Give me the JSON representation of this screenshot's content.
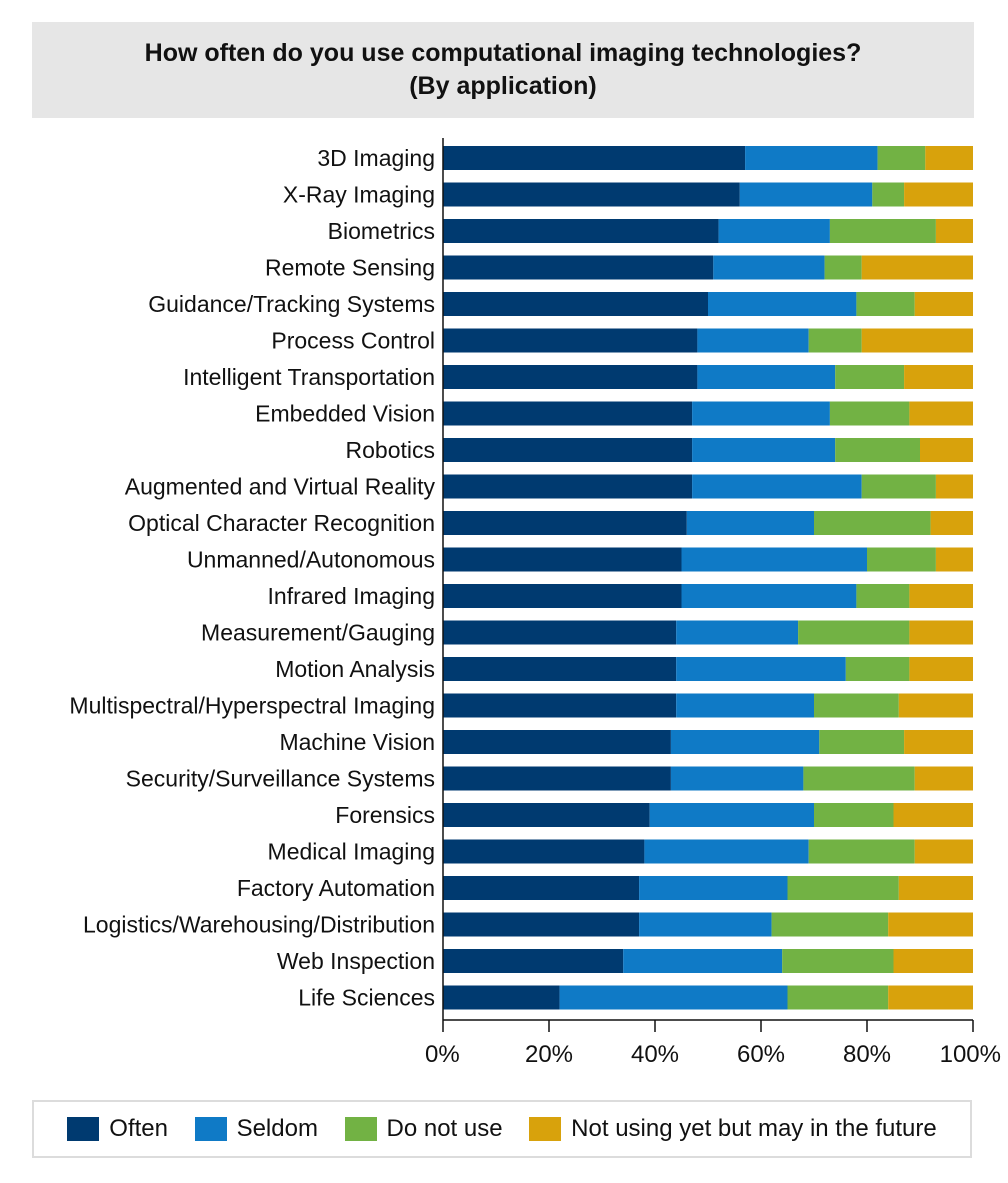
{
  "chart_data": {
    "type": "bar",
    "orientation": "horizontal",
    "stacked": true,
    "title": "How often do you use computational imaging technologies?",
    "subtitle": "(By application)",
    "xlim": [
      0,
      100
    ],
    "x_ticks": [
      "0%",
      "20%",
      "40%",
      "60%",
      "80%",
      "100%"
    ],
    "legend_position": "bottom",
    "grid": false,
    "categories": [
      "3D Imaging",
      "X-Ray Imaging",
      "Biometrics",
      "Remote Sensing",
      "Guidance/Tracking Systems",
      "Process Control",
      "Intelligent Transportation",
      "Embedded Vision",
      "Robotics",
      "Augmented and Virtual Reality",
      "Optical Character Recognition",
      "Unmanned/Autonomous",
      "Infrared Imaging",
      "Measurement/Gauging",
      "Motion Analysis",
      "Multispectral/Hyperspectral Imaging",
      "Machine Vision",
      "Security/Surveillance Systems",
      "Forensics",
      "Medical Imaging",
      "Factory Automation",
      "Logistics/Warehousing/Distribution",
      "Web Inspection",
      "Life Sciences"
    ],
    "series": [
      {
        "name": "Often",
        "color": "#003a70",
        "values": [
          57,
          56,
          52,
          51,
          50,
          48,
          48,
          47,
          47,
          47,
          46,
          45,
          45,
          44,
          44,
          44,
          43,
          43,
          39,
          38,
          37,
          37,
          34,
          22
        ]
      },
      {
        "name": "Seldom",
        "color": "#0f7ac6",
        "values": [
          25,
          25,
          21,
          21,
          28,
          21,
          26,
          26,
          27,
          32,
          24,
          35,
          33,
          23,
          32,
          26,
          28,
          25,
          31,
          31,
          28,
          25,
          30,
          43
        ]
      },
      {
        "name": "Do not use",
        "color": "#72b244",
        "values": [
          9,
          6,
          20,
          7,
          11,
          10,
          13,
          15,
          16,
          14,
          22,
          13,
          10,
          21,
          12,
          16,
          16,
          21,
          15,
          20,
          21,
          22,
          21,
          19
        ]
      },
      {
        "name": "Not using yet but may in the future",
        "color": "#d8a20c",
        "values": [
          9,
          13,
          7,
          21,
          11,
          21,
          13,
          12,
          10,
          7,
          8,
          7,
          12,
          12,
          12,
          14,
          13,
          11,
          15,
          11,
          14,
          16,
          15,
          16
        ]
      }
    ]
  }
}
